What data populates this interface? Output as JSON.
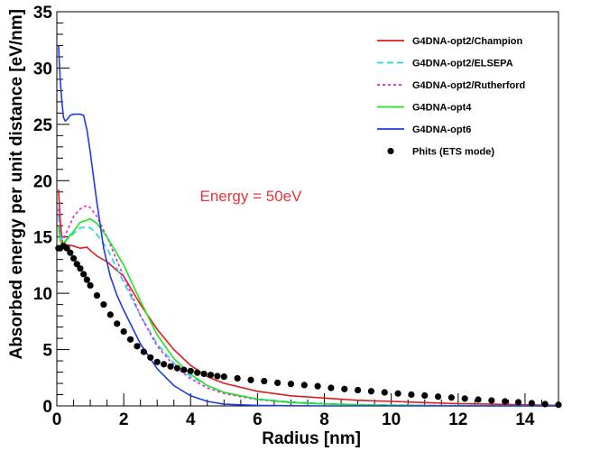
{
  "chart_data": {
    "type": "line",
    "title": "",
    "xlabel": "Radius [nm]",
    "ylabel": "Absorbed energy per unit distance [eV/nm]",
    "xlim": [
      0,
      15
    ],
    "ylim": [
      0,
      35
    ],
    "x_ticks": [
      0,
      2,
      4,
      6,
      8,
      10,
      12,
      14
    ],
    "y_ticks": [
      0,
      5,
      10,
      15,
      20,
      25,
      30,
      35
    ],
    "x_tick_labels": [
      "0",
      "2",
      "4",
      "6",
      "8",
      "10",
      "12",
      "14"
    ],
    "y_tick_labels": [
      "0",
      "5",
      "10",
      "15",
      "20",
      "25",
      "30",
      "35"
    ],
    "grid": false,
    "legend_position": "top-right",
    "annotation": {
      "text": "Energy = 50eV",
      "x": 5.8,
      "y": 18.2,
      "color": "#e8353a"
    },
    "series": [
      {
        "name": "G4DNA-opt2/Champion",
        "color": "#e31a1c",
        "style": "solid",
        "x": [
          0.05,
          0.1,
          0.15,
          0.2,
          0.3,
          0.5,
          0.7,
          0.9,
          1.0,
          1.2,
          1.5,
          2.0,
          2.5,
          3.0,
          3.5,
          4.0,
          4.5,
          5.0,
          6.0,
          7.0,
          8.0,
          9.0,
          10.0,
          11.0,
          12.0,
          13.0,
          14.0,
          15.0
        ],
        "y": [
          19.2,
          16.5,
          14.8,
          14.2,
          14.3,
          14.2,
          14.0,
          14.1,
          13.8,
          13.3,
          12.8,
          11.5,
          9.0,
          6.8,
          5.0,
          3.6,
          2.6,
          2.0,
          1.3,
          0.9,
          0.7,
          0.5,
          0.4,
          0.3,
          0.2,
          0.15,
          0.1,
          0.05
        ]
      },
      {
        "name": "G4DNA-opt2/ELSEPA",
        "color": "#20d5d8",
        "style": "dashed",
        "x": [
          0.05,
          0.1,
          0.2,
          0.3,
          0.5,
          0.7,
          0.9,
          1.0,
          1.2,
          1.5,
          2.0,
          2.5,
          3.0,
          3.5,
          4.0,
          4.5,
          5.0,
          6.0,
          7.0,
          8.0,
          9.0,
          10.0,
          11.0,
          12.0,
          13.0,
          14.0,
          15.0
        ],
        "y": [
          17.0,
          15.2,
          14.5,
          14.8,
          15.3,
          15.8,
          15.9,
          15.8,
          15.2,
          14.0,
          11.0,
          8.0,
          5.5,
          3.8,
          2.6,
          1.8,
          1.2,
          0.6,
          0.35,
          0.2,
          0.12,
          0.08,
          0.05,
          0.03,
          0.02,
          0.01,
          0.0
        ]
      },
      {
        "name": "G4DNA-opt2/Rutherford",
        "color": "#e41fe0",
        "style": "dotted",
        "x": [
          0.05,
          0.1,
          0.2,
          0.3,
          0.5,
          0.7,
          0.9,
          1.0,
          1.2,
          1.5,
          2.0,
          2.5,
          3.0,
          3.5,
          4.0,
          4.5,
          5.0,
          6.0,
          7.0,
          8.0,
          9.0,
          10.0,
          11.0,
          12.0,
          13.0,
          14.0,
          15.0
        ],
        "y": [
          17.5,
          15.5,
          14.8,
          15.5,
          16.8,
          17.5,
          17.8,
          17.6,
          16.8,
          15.0,
          11.5,
          8.0,
          5.3,
          3.6,
          2.4,
          1.6,
          1.1,
          0.55,
          0.3,
          0.18,
          0.1,
          0.06,
          0.04,
          0.02,
          0.01,
          0.0,
          0.0
        ]
      },
      {
        "name": "G4DNA-opt4",
        "color": "#22e31f",
        "style": "solid",
        "x": [
          0.05,
          0.1,
          0.2,
          0.3,
          0.5,
          0.7,
          0.9,
          1.0,
          1.2,
          1.5,
          2.0,
          2.5,
          3.0,
          3.5,
          4.0,
          4.5,
          5.0,
          6.0,
          7.0,
          8.0,
          9.0,
          10.0,
          11.0,
          12.0,
          13.0,
          14.0,
          15.0
        ],
        "y": [
          16.0,
          14.6,
          14.3,
          14.8,
          15.5,
          16.3,
          16.5,
          16.6,
          16.2,
          15.0,
          12.5,
          9.3,
          6.3,
          4.2,
          2.8,
          1.8,
          1.2,
          0.6,
          0.3,
          0.18,
          0.1,
          0.06,
          0.04,
          0.02,
          0.01,
          0.0,
          0.0
        ]
      },
      {
        "name": "G4DNA-opt6",
        "color": "#1f3be0",
        "style": "solid",
        "x": [
          0.05,
          0.1,
          0.15,
          0.2,
          0.25,
          0.3,
          0.4,
          0.5,
          0.6,
          0.7,
          0.8,
          0.9,
          1.0,
          1.2,
          1.4,
          1.6,
          1.8,
          2.0,
          2.5,
          3.0,
          3.5,
          4.0,
          4.5,
          5.0,
          6.0,
          7.0,
          8.0,
          9.0,
          10.0,
          12.0,
          15.0
        ],
        "y": [
          32.0,
          29.0,
          27.0,
          25.6,
          25.3,
          25.4,
          25.8,
          25.9,
          25.9,
          25.9,
          25.8,
          24.5,
          22.5,
          18.0,
          14.0,
          11.5,
          9.8,
          8.5,
          5.5,
          3.3,
          1.8,
          0.9,
          0.4,
          0.15,
          0.05,
          0.02,
          0.0,
          0.0,
          0.0,
          0.0,
          0.0
        ]
      },
      {
        "name": "Phits (ETS mode)",
        "color": "#000000",
        "style": "markers",
        "x": [
          0.05,
          0.1,
          0.2,
          0.3,
          0.4,
          0.5,
          0.6,
          0.7,
          0.8,
          0.9,
          1.0,
          1.2,
          1.4,
          1.6,
          1.8,
          2.0,
          2.2,
          2.4,
          2.6,
          2.8,
          3.0,
          3.2,
          3.4,
          3.6,
          3.8,
          4.0,
          4.2,
          4.4,
          4.6,
          4.8,
          5.0,
          5.4,
          5.8,
          6.2,
          6.6,
          7.0,
          7.4,
          7.8,
          8.2,
          8.6,
          9.0,
          9.4,
          9.8,
          10.2,
          10.6,
          11.0,
          11.4,
          11.8,
          12.2,
          12.6,
          13.0,
          13.4,
          13.8,
          14.2,
          14.6,
          15.0
        ],
        "y": [
          14.0,
          14.0,
          14.2,
          14.0,
          13.6,
          13.1,
          12.6,
          12.2,
          11.7,
          11.2,
          10.7,
          9.8,
          9.0,
          8.1,
          7.3,
          6.6,
          5.9,
          5.3,
          4.8,
          4.3,
          3.9,
          3.7,
          3.5,
          3.35,
          3.2,
          3.1,
          2.95,
          2.85,
          2.75,
          2.65,
          2.6,
          2.45,
          2.3,
          2.2,
          2.05,
          1.95,
          1.85,
          1.75,
          1.6,
          1.5,
          1.4,
          1.3,
          1.2,
          1.1,
          1.0,
          0.92,
          0.82,
          0.74,
          0.65,
          0.56,
          0.48,
          0.4,
          0.32,
          0.24,
          0.16,
          0.1
        ]
      }
    ]
  }
}
